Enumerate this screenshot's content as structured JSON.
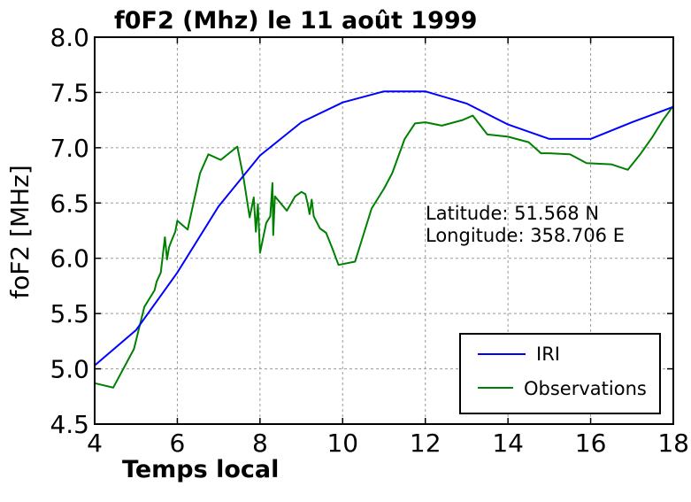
{
  "chart_data": {
    "type": "line",
    "title": "f0F2 (Mhz) le 11 août 1999",
    "xlabel": "Temps local",
    "ylabel": "foF2 [MHz]",
    "xlim": [
      4,
      18
    ],
    "ylim": [
      4.5,
      8.0
    ],
    "x_ticks": [
      4,
      6,
      8,
      10,
      12,
      14,
      16,
      18
    ],
    "x_tick_labels": [
      "4",
      "6",
      "8",
      "10",
      "12",
      "14",
      "16",
      "18"
    ],
    "y_ticks": [
      4.5,
      5.0,
      5.5,
      6.0,
      6.5,
      7.0,
      7.5,
      8.0
    ],
    "y_tick_labels": [
      "4.5",
      "5.0",
      "5.5",
      "6.0",
      "6.5",
      "7.0",
      "7.5",
      "8.0"
    ],
    "grid": true,
    "legend_position": "bottom-right",
    "annotations": [
      "Latitude: 51.568 N",
      "Longitude: 358.706 E"
    ],
    "series": [
      {
        "name": "IRI",
        "color": "#0000ff",
        "x": [
          4,
          5,
          6,
          7,
          8,
          9,
          10,
          11,
          12,
          13,
          14,
          15,
          16,
          17,
          18
        ],
        "y": [
          5.03,
          5.35,
          5.87,
          6.47,
          6.93,
          7.23,
          7.41,
          7.51,
          7.51,
          7.4,
          7.21,
          7.08,
          7.08,
          7.23,
          7.37
        ]
      },
      {
        "name": "Observations",
        "color": "#008000",
        "x": [
          4,
          4.45,
          4.95,
          5.2,
          5.45,
          5.5,
          5.6,
          5.7,
          5.75,
          5.8,
          5.85,
          5.95,
          6.0,
          6.25,
          6.55,
          6.75,
          7.05,
          7.45,
          7.6,
          7.75,
          7.85,
          7.9,
          7.95,
          8.0,
          8.15,
          8.25,
          8.3,
          8.32,
          8.36,
          8.45,
          8.65,
          8.85,
          9.0,
          9.1,
          9.15,
          9.2,
          9.25,
          9.3,
          9.45,
          9.6,
          9.75,
          9.9,
          10.3,
          10.7,
          11.0,
          11.2,
          11.5,
          11.75,
          12.0,
          12.4,
          12.9,
          13.15,
          13.5,
          14.0,
          14.5,
          14.8,
          15.0,
          15.5,
          15.9,
          16.5,
          16.9,
          17.2,
          17.5,
          17.75,
          18.0
        ],
        "y": [
          4.87,
          4.83,
          5.18,
          5.56,
          5.71,
          5.79,
          5.87,
          6.19,
          5.99,
          6.1,
          6.15,
          6.24,
          6.34,
          6.26,
          6.77,
          6.94,
          6.89,
          7.01,
          6.73,
          6.37,
          6.55,
          6.24,
          6.49,
          6.05,
          6.32,
          6.38,
          6.68,
          6.21,
          6.56,
          6.52,
          6.43,
          6.56,
          6.6,
          6.58,
          6.5,
          6.4,
          6.53,
          6.38,
          6.27,
          6.23,
          6.09,
          5.94,
          5.97,
          6.45,
          6.63,
          6.77,
          7.08,
          7.22,
          7.23,
          7.2,
          7.25,
          7.29,
          7.12,
          7.1,
          7.05,
          6.95,
          6.95,
          6.94,
          6.86,
          6.85,
          6.8,
          6.94,
          7.1,
          7.25,
          7.38
        ]
      }
    ]
  }
}
